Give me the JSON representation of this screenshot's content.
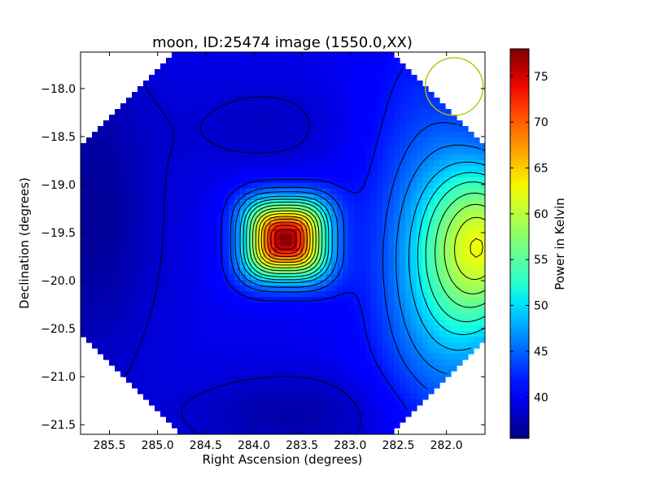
{
  "chart_data": {
    "type": "heatmap",
    "title": "moon, ID:25474 image (1550.0,XX)",
    "xlabel": "Right Ascension (degrees)",
    "ylabel": "Declination (degrees)",
    "xlim": [
      285.8,
      281.6
    ],
    "ylim": [
      -21.6,
      -17.62
    ],
    "x_inverted": true,
    "x_ticks": [
      "285.5",
      "285.0",
      "284.5",
      "284.0",
      "283.5",
      "283.0",
      "282.5",
      "282.0"
    ],
    "x_tick_values": [
      285.5,
      285.0,
      284.5,
      284.0,
      283.5,
      283.0,
      282.5,
      282.0
    ],
    "y_ticks": [
      "−18.0",
      "−18.5",
      "−19.0",
      "−19.5",
      "−20.0",
      "−20.5",
      "−21.0",
      "−21.5"
    ],
    "y_tick_values": [
      -18.0,
      -18.5,
      -19.0,
      -19.5,
      -20.0,
      -20.5,
      -21.0,
      -21.5
    ],
    "colorbar": {
      "label": "Power in Kelvin",
      "range": [
        35.5,
        78.0
      ],
      "colormap": "jet",
      "ticks": [
        "40",
        "45",
        "50",
        "55",
        "60",
        "65",
        "70",
        "75"
      ],
      "tick_values": [
        40,
        45,
        50,
        55,
        60,
        65,
        70,
        75
      ]
    },
    "field": {
      "background": 39.5,
      "peak": {
        "ra": 283.67,
        "dec": -19.57,
        "value": 78.0
      },
      "secondary": {
        "ra": 281.6,
        "dec": -19.6,
        "value": 56.0
      },
      "minimum_value": 36.0
    },
    "contour_levels": [
      38.5,
      41.5,
      44,
      46,
      48.5,
      50.5,
      52.5,
      55,
      57.5,
      60,
      62.5,
      65,
      67.5,
      70,
      72.5,
      75
    ],
    "beam_circle": {
      "ra": 281.92,
      "dec": -17.98,
      "radius_deg": 0.3,
      "color": "#bfbf00"
    },
    "grid": false,
    "legend": "none"
  }
}
